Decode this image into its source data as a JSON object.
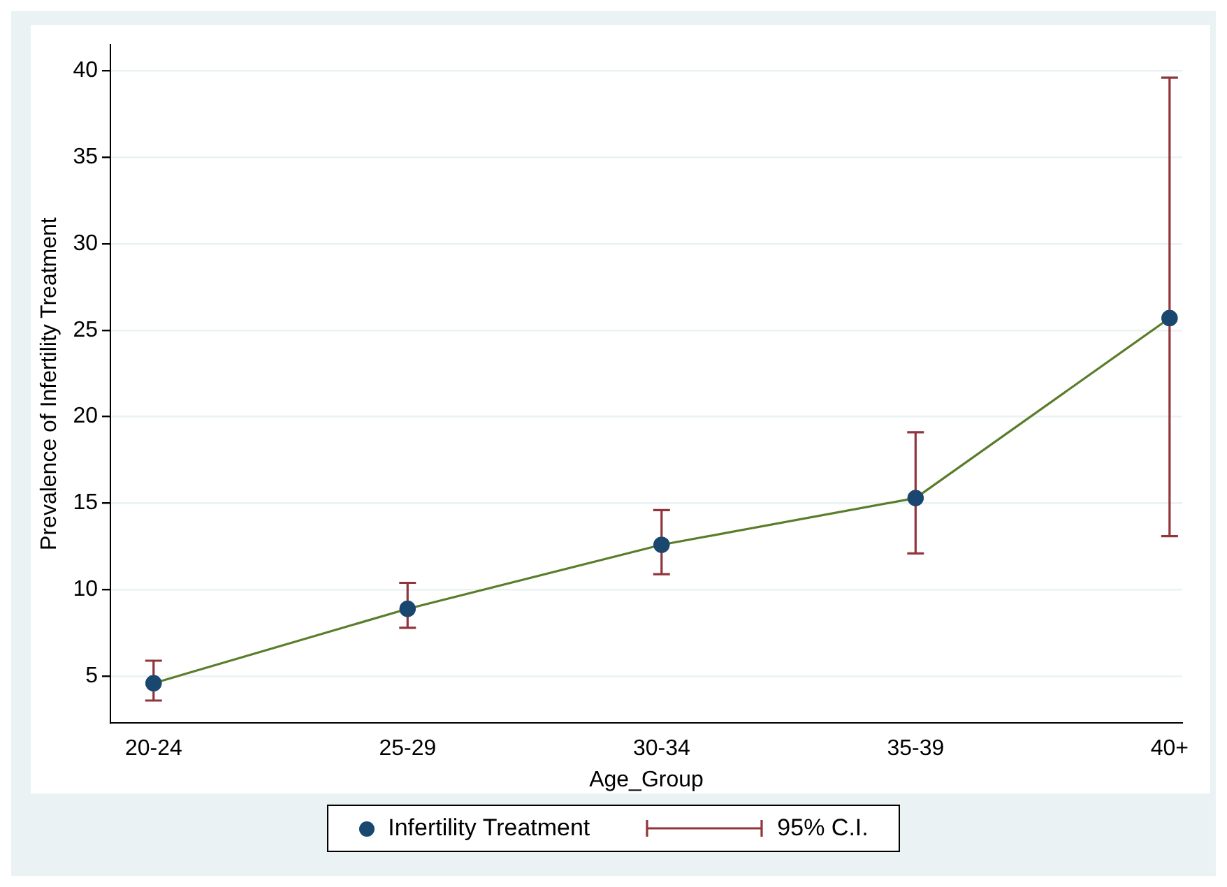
{
  "chart_data": {
    "type": "line",
    "xlabel": "Age_Group",
    "ylabel": "Prevalence of Infertility Treatment",
    "categories": [
      "20-24",
      "25-29",
      "30-34",
      "35-39",
      "40+"
    ],
    "series": [
      {
        "name": "Infertility Treatment",
        "color": "#1a476f",
        "values": [
          4.6,
          8.9,
          12.6,
          15.3,
          25.7
        ],
        "errors": [
          [
            3.6,
            5.9
          ],
          [
            7.8,
            10.4
          ],
          [
            10.9,
            14.6
          ],
          [
            12.1,
            19.1
          ],
          [
            13.1,
            39.6
          ]
        ]
      }
    ],
    "ylim": [
      2.3,
      41.5
    ],
    "yticks": [
      5,
      10,
      15,
      20,
      25,
      30,
      35,
      40
    ],
    "grid": "y",
    "legend": "bottom",
    "marker": "circle",
    "line_style": "solid",
    "annotations": [
      "95% C.I."
    ]
  }
}
